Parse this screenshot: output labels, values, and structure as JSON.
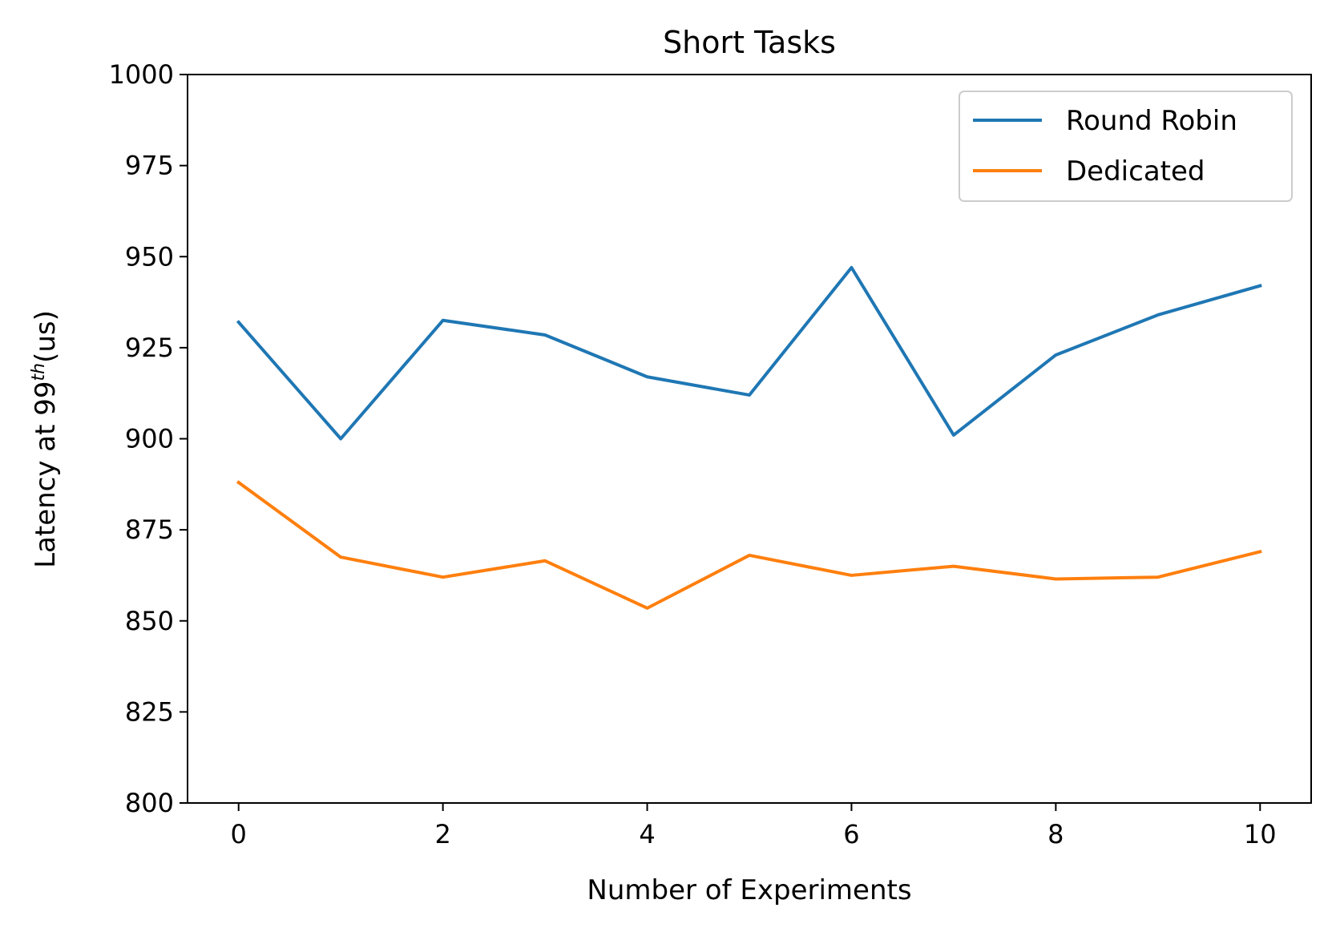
{
  "chart_data": {
    "type": "line",
    "title": "Short Tasks",
    "xlabel": "Number of Experiments",
    "ylabel": {
      "prefix": "Latency at 99",
      "sup": "th",
      "suffix": "(us)"
    },
    "x": [
      0,
      1,
      2,
      3,
      4,
      5,
      6,
      7,
      8,
      9,
      10
    ],
    "xlim": [
      -0.5,
      10.5
    ],
    "ylim": [
      800,
      1000
    ],
    "xticks": [
      0,
      2,
      4,
      6,
      8,
      10
    ],
    "yticks": [
      800,
      825,
      850,
      875,
      900,
      925,
      950,
      975,
      1000
    ],
    "grid": false,
    "legend_position": "top-right",
    "series": [
      {
        "name": "Round Robin",
        "color": "#1f77b4",
        "values": [
          932,
          900,
          932.5,
          928.5,
          917,
          912,
          947,
          901,
          923,
          934,
          942
        ]
      },
      {
        "name": "Dedicated",
        "color": "#ff7f0e",
        "values": [
          888,
          867.5,
          862,
          866.5,
          853.5,
          868,
          862.5,
          865,
          861.5,
          862,
          869
        ]
      }
    ]
  }
}
